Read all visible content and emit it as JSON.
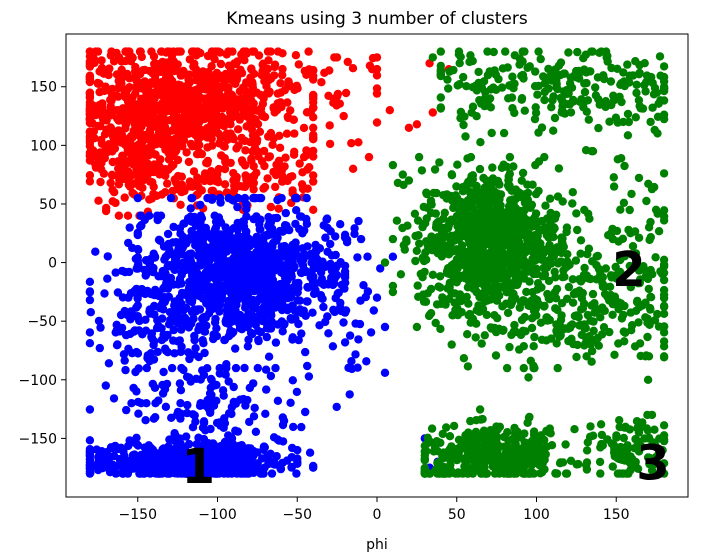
{
  "chart_data": {
    "type": "scatter",
    "title": "Kmeans using 3 number of clusters",
    "xlabel": "phi",
    "ylabel": "",
    "xlim": [
      -195,
      195
    ],
    "ylim": [
      -200,
      195
    ],
    "xticks": [
      -150,
      -100,
      -50,
      0,
      50,
      100,
      150
    ],
    "yticks": [
      -150,
      -100,
      -50,
      0,
      50,
      100,
      150
    ],
    "xtick_labels": [
      "−150",
      "−100",
      "−50",
      "0",
      "50",
      "100",
      "150"
    ],
    "ytick_labels": [
      "−150",
      "−100",
      "−50",
      "0",
      "50",
      "100",
      "150"
    ],
    "grid": false,
    "legend": "none",
    "series": [
      {
        "color": "#ff0000",
        "regions": [
          {
            "cx": -120,
            "cy": 135,
            "sx": 38,
            "sy": 25,
            "n": 900,
            "xmin": -180,
            "xmax": -40,
            "ymin": 60,
            "ymax": 180
          },
          {
            "cx": -150,
            "cy": 90,
            "sx": 15,
            "sy": 25,
            "n": 200,
            "xmin": -180,
            "xmax": -100,
            "ymin": 40,
            "ymax": 130
          },
          {
            "cx": -85,
            "cy": 70,
            "sx": 25,
            "sy": 12,
            "n": 120,
            "xmin": -140,
            "xmax": -40,
            "ymin": 45,
            "ymax": 100
          },
          {
            "cx": -20,
            "cy": 140,
            "sx": 15,
            "sy": 25,
            "n": 30,
            "xmin": -40,
            "xmax": 0,
            "ymin": 70,
            "ymax": 175
          }
        ],
        "points": [
          [
            -3,
            165
          ],
          [
            8,
            130
          ],
          [
            20,
            115
          ],
          [
            35,
            128
          ],
          [
            33,
            170
          ],
          [
            40,
            160
          ],
          [
            -15,
            80
          ],
          [
            -5,
            90
          ],
          [
            25,
            118
          ],
          [
            45,
            165
          ]
        ]
      },
      {
        "color": "#0000ff",
        "regions": [
          {
            "cx": -85,
            "cy": -10,
            "sx": 28,
            "sy": 28,
            "n": 1000,
            "xmin": -150,
            "xmax": -20,
            "ymin": -90,
            "ymax": 55
          },
          {
            "cx": -140,
            "cy": -40,
            "sx": 20,
            "sy": 40,
            "n": 200,
            "xmin": -180,
            "xmax": -90,
            "ymin": -120,
            "ymax": 40
          },
          {
            "cx": -120,
            "cy": -170,
            "sx": 30,
            "sy": 8,
            "n": 500,
            "xmin": -180,
            "xmax": -50,
            "ymin": -180,
            "ymax": -140
          },
          {
            "cx": -100,
            "cy": -130,
            "sx": 30,
            "sy": 25,
            "n": 150,
            "xmin": -180,
            "xmax": -40,
            "ymin": -180,
            "ymax": -90
          },
          {
            "cx": -20,
            "cy": -40,
            "sx": 12,
            "sy": 40,
            "n": 50,
            "xmin": -45,
            "xmax": 5,
            "ymin": -140,
            "ymax": 40
          }
        ],
        "points": [
          [
            2,
            -5
          ],
          [
            5,
            -55
          ],
          [
            30,
            -150
          ],
          [
            33,
            -175
          ],
          [
            38,
            -170
          ],
          [
            -10,
            20
          ],
          [
            10,
            5
          ],
          [
            -50,
            -160
          ],
          [
            -40,
            -175
          ],
          [
            0,
            -30
          ]
        ]
      },
      {
        "color": "#008000",
        "regions": [
          {
            "cx": 70,
            "cy": 20,
            "sx": 22,
            "sy": 30,
            "n": 800,
            "xmin": 10,
            "xmax": 140,
            "ymin": -70,
            "ymax": 90
          },
          {
            "cx": 110,
            "cy": -30,
            "sx": 35,
            "sy": 30,
            "n": 300,
            "xmin": 20,
            "xmax": 180,
            "ymin": -90,
            "ymax": 60
          },
          {
            "cx": 110,
            "cy": 150,
            "sx": 40,
            "sy": 20,
            "n": 250,
            "xmin": 40,
            "xmax": 180,
            "ymin": 95,
            "ymax": 180
          },
          {
            "cx": 75,
            "cy": -165,
            "sx": 25,
            "sy": 12,
            "n": 400,
            "xmin": 30,
            "xmax": 140,
            "ymin": -180,
            "ymax": -120
          },
          {
            "cx": 160,
            "cy": -160,
            "sx": 12,
            "sy": 15,
            "n": 100,
            "xmin": 125,
            "xmax": 180,
            "ymin": -180,
            "ymax": -130
          },
          {
            "cx": 165,
            "cy": 0,
            "sx": 15,
            "sy": 60,
            "n": 100,
            "xmin": 130,
            "xmax": 180,
            "ymin": -80,
            "ymax": 120
          }
        ],
        "points": [
          [
            10,
            20
          ],
          [
            15,
            -10
          ],
          [
            5,
            0
          ],
          [
            20,
            70
          ],
          [
            25,
            -55
          ],
          [
            35,
            175
          ],
          [
            60,
            172
          ],
          [
            95,
            -98
          ],
          [
            170,
            -100
          ],
          [
            175,
            45
          ]
        ]
      }
    ],
    "annotations": [
      {
        "text": "1",
        "x": -112,
        "y": -188
      },
      {
        "text": "2",
        "x": 158,
        "y": -20
      },
      {
        "text": "3",
        "x": 173,
        "y": -185
      }
    ]
  }
}
